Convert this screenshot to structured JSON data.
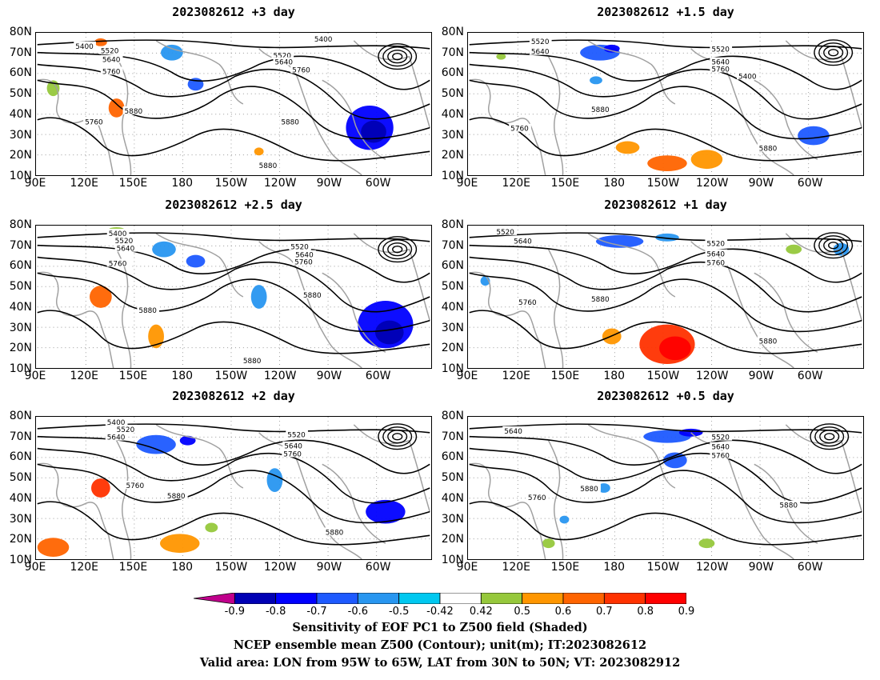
{
  "panels": [
    {
      "title": "2023082612 +3 day",
      "contour_labels": [
        "5400",
        "5520",
        "5640",
        "5760",
        "5880",
        "5760",
        "5880",
        "5880",
        "5520",
        "5640",
        "5760",
        "5400"
      ]
    },
    {
      "title": "2023082612 +1.5 day",
      "contour_labels": [
        "5520",
        "5640",
        "5520",
        "5640",
        "5760",
        "5400",
        "5880",
        "5760",
        "5880"
      ]
    },
    {
      "title": "2023082612 +2.5 day",
      "contour_labels": [
        "5400",
        "5520",
        "5640",
        "5760",
        "5880",
        "5520",
        "5640",
        "5760",
        "5880",
        "5880"
      ]
    },
    {
      "title": "2023082612 +1 day",
      "contour_labels": [
        "5520",
        "5640",
        "5520",
        "5640",
        "5760",
        "5760",
        "5880",
        "5880"
      ]
    },
    {
      "title": "2023082612 +2 day",
      "contour_labels": [
        "5400",
        "5520",
        "5640",
        "5760",
        "5880",
        "5520",
        "5640",
        "5760",
        "5880"
      ]
    },
    {
      "title": "2023082612 +0.5 day",
      "contour_labels": [
        "5640",
        "5520",
        "5640",
        "5760",
        "5760",
        "5880",
        "5880"
      ]
    }
  ],
  "axes": {
    "lat_labels": [
      "80N",
      "70N",
      "60N",
      "50N",
      "40N",
      "30N",
      "20N",
      "10N"
    ],
    "lon_labels": [
      "90E",
      "120E",
      "150E",
      "180",
      "150W",
      "120W",
      "90W",
      "60W"
    ]
  },
  "colorbar": {
    "labels": [
      "-0.9",
      "-0.8",
      "-0.7",
      "-0.6",
      "-0.5",
      "-0.42",
      "0.42",
      "0.5",
      "0.6",
      "0.7",
      "0.8",
      "0.9"
    ],
    "colors": [
      "#c0008c",
      "#0000b4",
      "#0000ff",
      "#1e5aff",
      "#2896f0",
      "#00c8f0",
      "#ffffff",
      "#96c83c",
      "#ff9600",
      "#ff6400",
      "#ff3200",
      "#ff0000",
      "#ff96c8"
    ]
  },
  "caption": {
    "line1": "Sensitivity of EOF PC1 to Z500 field (Shaded)",
    "line2": "NCEP ensemble mean Z500 (Contour); unit(m); IT:2023082612",
    "line3": "Valid area: LON from 95W to 65W, LAT from 30N to 50N; VT: 2023082912"
  },
  "map": {
    "contour_color": "#000000",
    "coastline_color": "#a0a0a0",
    "grid_color": "#999999"
  }
}
